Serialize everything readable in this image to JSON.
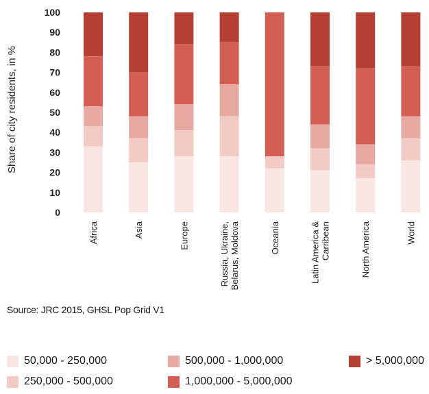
{
  "chart_data": {
    "type": "bar",
    "stacked": true,
    "ylabel": "Share of city residents, in %",
    "ylim": [
      0,
      100
    ],
    "yticks": [
      0,
      10,
      20,
      30,
      40,
      50,
      60,
      70,
      80,
      90,
      100
    ],
    "grid": false,
    "categories": [
      [
        "Africa"
      ],
      [
        "Asia"
      ],
      [
        "Europe"
      ],
      [
        "Russia, Ukraine,",
        "Belarus, Moldova"
      ],
      [
        "Oceania"
      ],
      [
        "Latin America &",
        "Carribean"
      ],
      [
        "North America"
      ],
      [
        "World"
      ]
    ],
    "series": [
      {
        "name": "50,000 - 250,000",
        "color": "#f9e6e3",
        "values": [
          33,
          25,
          28,
          28,
          22,
          21,
          17,
          26
        ]
      },
      {
        "name": "250,000 - 500,000",
        "color": "#f2cbc5",
        "values": [
          10,
          12,
          13,
          20,
          6,
          11,
          7,
          11
        ]
      },
      {
        "name": "500,000 - 1,000,000",
        "color": "#e7aaa2",
        "values": [
          10,
          11,
          13,
          16,
          0,
          12,
          10,
          11
        ]
      },
      {
        "name": "1,000,000 - 5,000,000",
        "color": "#d35f54",
        "values": [
          25,
          22,
          30,
          21,
          72,
          29,
          38,
          25
        ]
      },
      {
        "name": "> 5,000,000",
        "color": "#b53f33",
        "values": [
          22,
          30,
          16,
          15,
          0,
          27,
          28,
          27
        ]
      }
    ]
  },
  "source": "Source: JRC 2015, GHSL Pop Grid V1"
}
